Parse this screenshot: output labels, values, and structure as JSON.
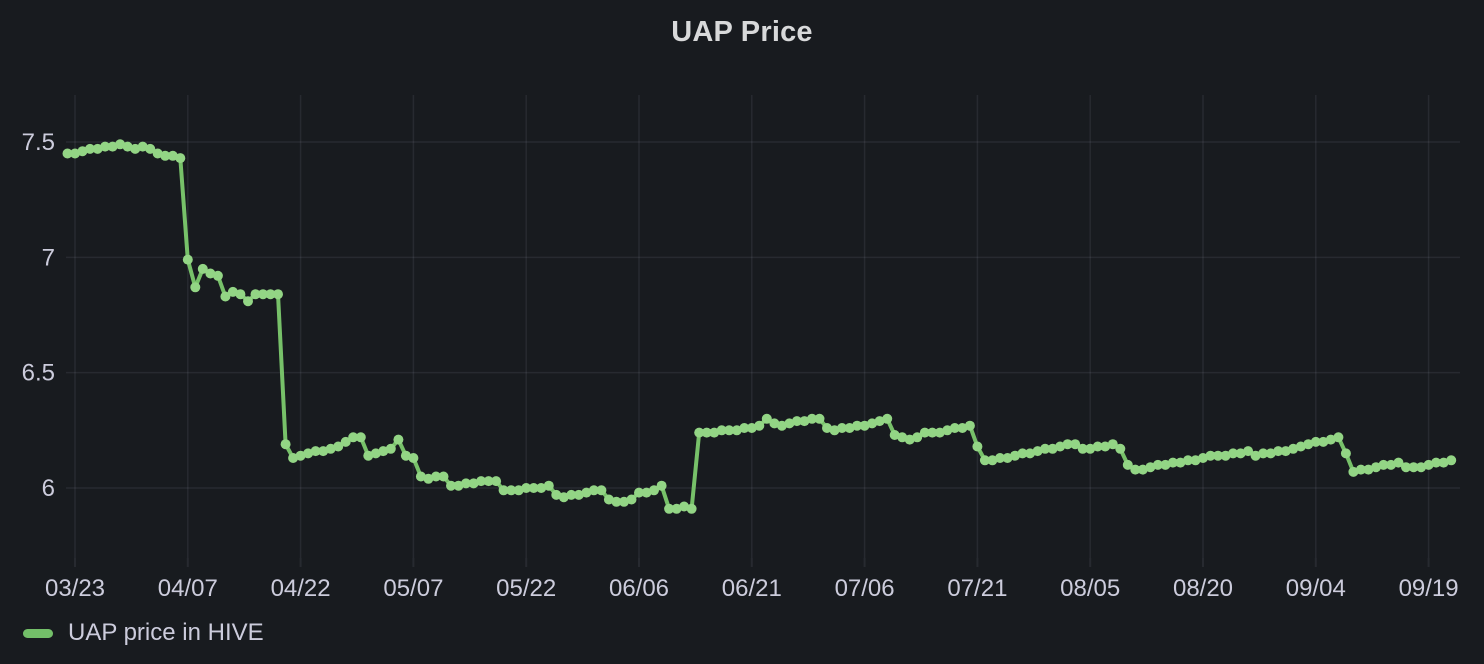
{
  "panel": {
    "title": "UAP Price",
    "background_color": "#181b1f",
    "title_color": "#d8d9da"
  },
  "legend": {
    "label": "UAP price in HIVE",
    "swatch_color": "#73bf69"
  },
  "axis": {
    "text_color": "#ccccdc",
    "grid_color": "rgba(204,204,220,0.09)"
  },
  "chart_data": {
    "type": "line",
    "title": "UAP Price",
    "series": [
      {
        "name": "UAP price in HIVE",
        "line_color": "#77c169",
        "point_color": "#93d585",
        "sampling": "daily",
        "start_date": "03/22",
        "end_date": "09/22",
        "values": [
          7.45,
          7.45,
          7.46,
          7.47,
          7.47,
          7.48,
          7.48,
          7.49,
          7.48,
          7.47,
          7.48,
          7.47,
          7.45,
          7.44,
          7.44,
          7.43,
          6.99,
          6.87,
          6.95,
          6.93,
          6.92,
          6.83,
          6.85,
          6.84,
          6.81,
          6.84,
          6.84,
          6.84,
          6.84,
          6.19,
          6.13,
          6.14,
          6.15,
          6.16,
          6.16,
          6.17,
          6.18,
          6.2,
          6.22,
          6.22,
          6.14,
          6.15,
          6.16,
          6.17,
          6.21,
          6.14,
          6.13,
          6.05,
          6.04,
          6.05,
          6.05,
          6.01,
          6.01,
          6.02,
          6.02,
          6.03,
          6.03,
          6.03,
          5.99,
          5.99,
          5.99,
          6.0,
          6.0,
          6.0,
          6.01,
          5.97,
          5.96,
          5.97,
          5.97,
          5.98,
          5.99,
          5.99,
          5.95,
          5.94,
          5.94,
          5.95,
          5.98,
          5.98,
          5.99,
          6.01,
          5.91,
          5.91,
          5.92,
          5.91,
          6.24,
          6.24,
          6.24,
          6.25,
          6.25,
          6.25,
          6.26,
          6.26,
          6.27,
          6.3,
          6.28,
          6.27,
          6.28,
          6.29,
          6.29,
          6.3,
          6.3,
          6.26,
          6.25,
          6.26,
          6.26,
          6.27,
          6.27,
          6.28,
          6.29,
          6.3,
          6.23,
          6.22,
          6.21,
          6.22,
          6.24,
          6.24,
          6.24,
          6.25,
          6.26,
          6.26,
          6.27,
          6.18,
          6.12,
          6.12,
          6.13,
          6.13,
          6.14,
          6.15,
          6.15,
          6.16,
          6.17,
          6.17,
          6.18,
          6.19,
          6.19,
          6.17,
          6.17,
          6.18,
          6.18,
          6.19,
          6.17,
          6.1,
          6.08,
          6.08,
          6.09,
          6.1,
          6.1,
          6.11,
          6.11,
          6.12,
          6.12,
          6.13,
          6.14,
          6.14,
          6.14,
          6.15,
          6.15,
          6.16,
          6.14,
          6.15,
          6.15,
          6.16,
          6.16,
          6.17,
          6.18,
          6.19,
          6.2,
          6.2,
          6.21,
          6.22,
          6.15,
          6.07,
          6.08,
          6.08,
          6.09,
          6.1,
          6.1,
          6.11,
          6.09,
          6.09,
          6.09,
          6.1,
          6.11,
          6.11,
          6.12
        ]
      }
    ],
    "x_tick_labels": [
      "03/23",
      "04/07",
      "04/22",
      "05/07",
      "05/22",
      "06/06",
      "06/21",
      "07/06",
      "07/21",
      "08/05",
      "08/20",
      "09/04",
      "09/19"
    ],
    "x_tick_interval_days": 15,
    "y_tick_labels": [
      "7.5",
      "7",
      "6.5",
      "6"
    ],
    "y_tick_values": [
      7.5,
      7.0,
      6.5,
      6.0
    ],
    "ylabel": "",
    "xlabel": "",
    "grid": true,
    "legend_position": "bottom-left"
  }
}
